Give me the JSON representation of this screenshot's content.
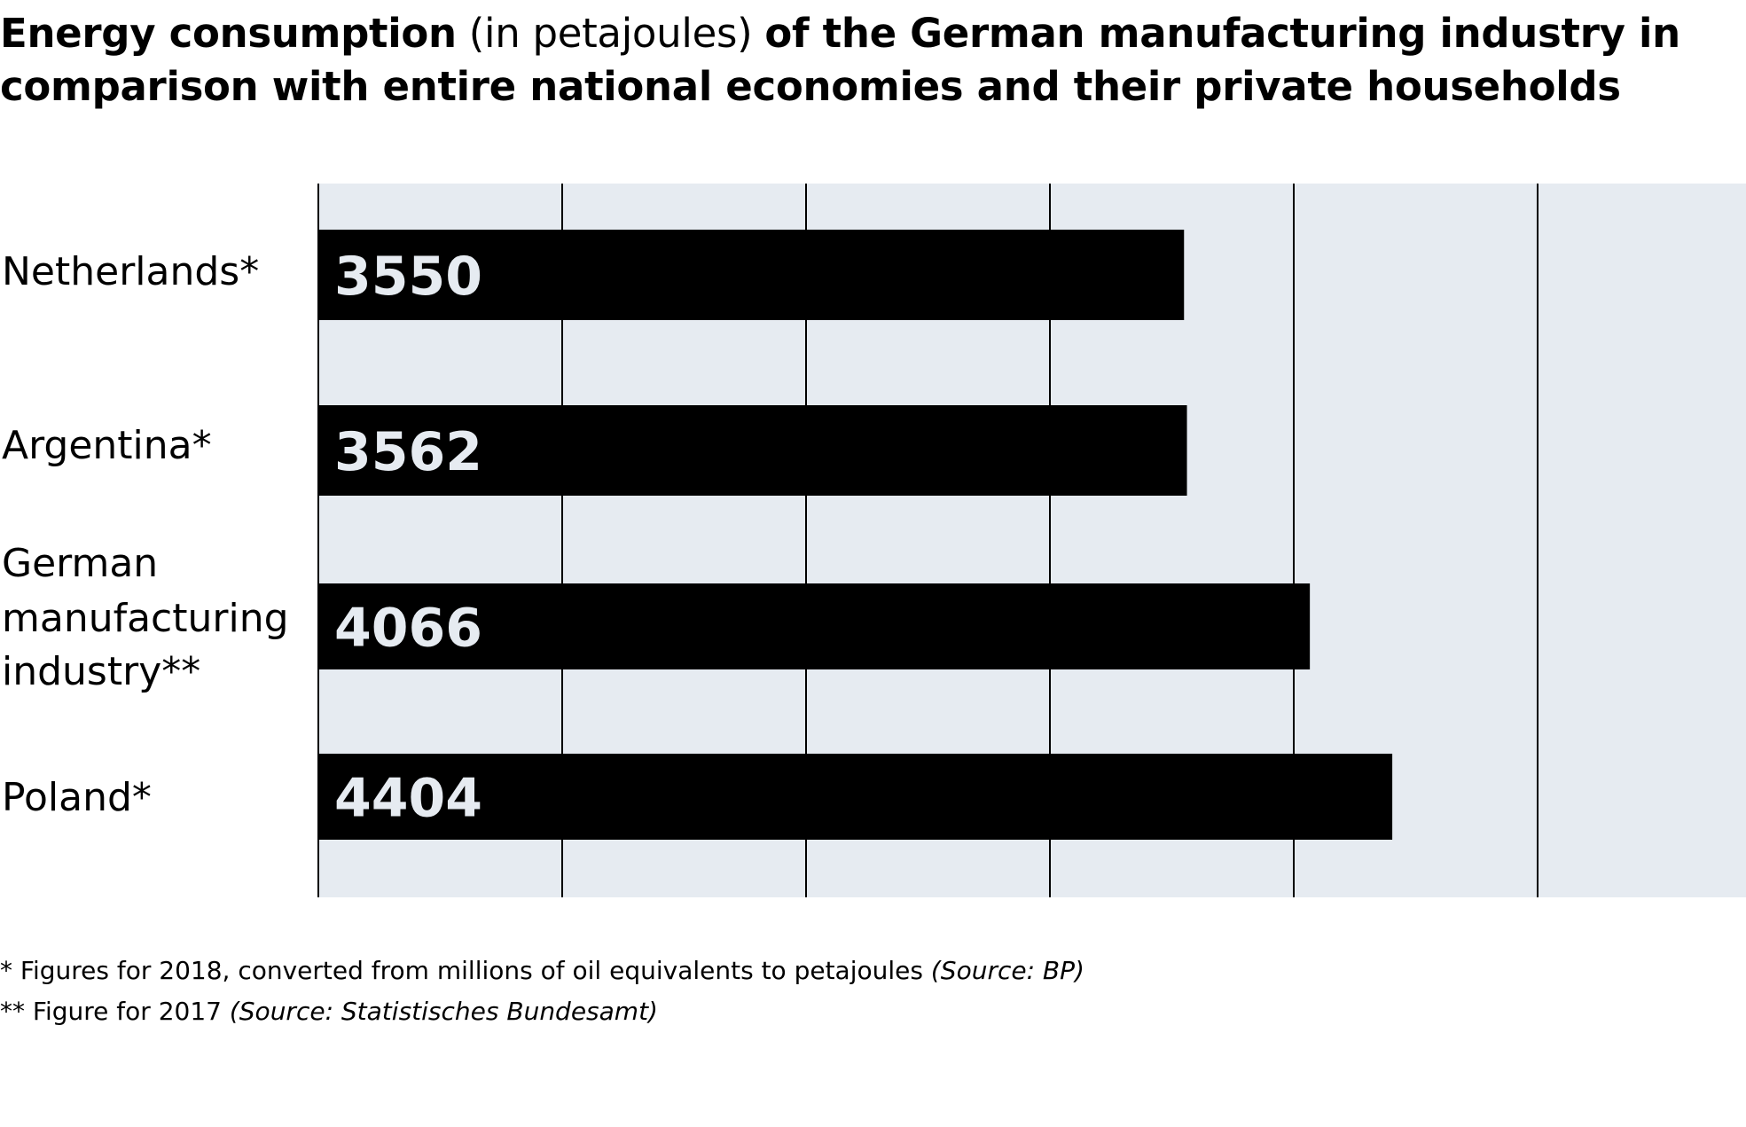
{
  "title": {
    "bold_start": "Energy consumption",
    "light": " (in petajoules) ",
    "bold_end": "of the German manufacturing industry in comparison with entire national economies and their private households"
  },
  "footnotes": [
    {
      "text": "* Figures for 2018, converted from millions of oil equivalents to petajoules ",
      "source": "(Source: BP)"
    },
    {
      "text": "** Figure for 2017 ",
      "source": "(Source: Statistisches Bundesamt)"
    }
  ],
  "colors": {
    "bar": "#000000",
    "plot_background": "#e6ebf1",
    "value_label": "#e6ebf1"
  },
  "chart_data": {
    "type": "bar",
    "orientation": "horizontal",
    "categories": [
      [
        "Netherlands*"
      ],
      [
        "Argentina*"
      ],
      [
        "German",
        "manufacturing",
        "industry**"
      ],
      [
        "Poland*"
      ]
    ],
    "values": [
      3550,
      3562,
      4066,
      4404
    ],
    "xlim": [
      0,
      5800
    ],
    "grid": true,
    "data_labels": true
  }
}
